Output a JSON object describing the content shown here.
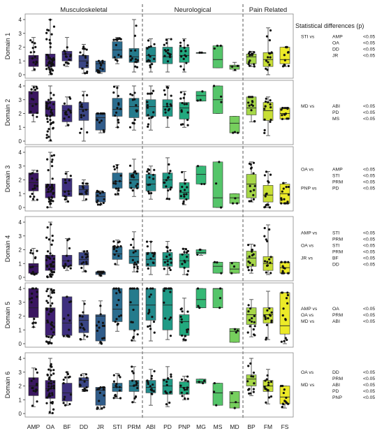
{
  "chart_data": {
    "type": "box",
    "groups": [
      {
        "label": "Musculoskeletal",
        "categories": [
          "AMP",
          "OA",
          "BF",
          "DD",
          "JR",
          "STI",
          "PRM"
        ]
      },
      {
        "label": "Neurological",
        "categories": [
          "ABI",
          "PD",
          "PNP",
          "MG",
          "MS",
          "MD"
        ]
      },
      {
        "label": "Pain Related",
        "categories": [
          "BP",
          "FM",
          "FS"
        ]
      }
    ],
    "categories": [
      "AMP",
      "OA",
      "BF",
      "DD",
      "JR",
      "STI",
      "PRM",
      "ABI",
      "PD",
      "PNP",
      "MG",
      "MS",
      "MD",
      "BP",
      "FM",
      "FS"
    ],
    "colors": [
      "#3a1660",
      "#3f1f72",
      "#3e2f7e",
      "#3a4584",
      "#305c8a",
      "#2a6c8e",
      "#257b8c",
      "#228a8b",
      "#209a85",
      "#22a97e",
      "#35b875",
      "#55c56a",
      "#76cf5d",
      "#a6d748",
      "#c8df35",
      "#ecea28"
    ],
    "y_range": [
      0,
      4
    ],
    "y_ticks": [
      "0",
      "1",
      "2",
      "3",
      "4"
    ],
    "panels": [
      {
        "ylabel": "Domain 1",
        "boxes": [
          {
            "min": 0.3,
            "q1": 0.6,
            "median": 1.2,
            "q3": 1.4,
            "max": 2.7
          },
          {
            "min": 0,
            "q1": 0.6,
            "median": 1.1,
            "q3": 1.5,
            "max": 4
          },
          {
            "min": 0.6,
            "q1": 1.0,
            "median": 1.5,
            "q3": 1.7,
            "max": 2.7
          },
          {
            "min": 0.1,
            "q1": 0.5,
            "median": 1.0,
            "q3": 1.4,
            "max": 2.2
          },
          {
            "min": 0.1,
            "q1": 0.2,
            "median": 0.8,
            "q3": 1.0,
            "max": 1.0
          },
          {
            "min": 0.8,
            "q1": 1.2,
            "median": 1.8,
            "q3": 2.4,
            "max": 2.7
          },
          {
            "min": 0.2,
            "q1": 0.9,
            "median": 1.3,
            "q3": 1.9,
            "max": 4
          },
          {
            "min": 0.2,
            "q1": 0.9,
            "median": 1.4,
            "q3": 2.0,
            "max": 2.6
          },
          {
            "min": 0.2,
            "q1": 0.8,
            "median": 1.3,
            "q3": 2.0,
            "max": 2.6
          },
          {
            "min": 0.2,
            "q1": 0.9,
            "median": 1.4,
            "q3": 2.0,
            "max": 2.6
          },
          {
            "min": 1.6,
            "q1": 1.6,
            "median": 1.6,
            "q3": 1.6,
            "max": 1.6
          },
          {
            "min": 0.5,
            "q1": 0.5,
            "median": 1.1,
            "q3": 2.1,
            "max": 2.1
          },
          {
            "min": 0.3,
            "q1": 0.4,
            "median": 0.6,
            "q3": 0.7,
            "max": 0.9
          },
          {
            "min": 0.6,
            "q1": 0.8,
            "median": 1.3,
            "q3": 1.5,
            "max": 1.7
          },
          {
            "min": 0,
            "q1": 0.6,
            "median": 1.1,
            "q3": 1.6,
            "max": 3.4
          },
          {
            "min": 0.6,
            "q1": 0.8,
            "median": 1.1,
            "q3": 2.0,
            "max": 2.0
          }
        ],
        "stats": [
          {
            "comparison": "STI vs",
            "against": "AMP",
            "p": "<0.05"
          },
          {
            "comparison": "",
            "against": "OA",
            "p": "<0.05"
          },
          {
            "comparison": "",
            "against": "DD",
            "p": "<0.05"
          },
          {
            "comparison": "",
            "against": "JR",
            "p": "<0.05"
          }
        ]
      },
      {
        "ylabel": "Domain 2",
        "boxes": [
          {
            "min": 1.4,
            "q1": 2.0,
            "median": 2.7,
            "q3": 3.6,
            "max": 4
          },
          {
            "min": 0,
            "q1": 1.8,
            "median": 2.3,
            "q3": 2.9,
            "max": 4
          },
          {
            "min": 1.1,
            "q1": 1.4,
            "median": 2.2,
            "q3": 2.6,
            "max": 3.2
          },
          {
            "min": 0,
            "q1": 1.5,
            "median": 2.3,
            "q3": 2.8,
            "max": 3.6
          },
          {
            "min": 0.6,
            "q1": 0.8,
            "median": 1.7,
            "q3": 2.0,
            "max": 2.0
          },
          {
            "min": 1.0,
            "q1": 1.8,
            "median": 2.3,
            "q3": 3.1,
            "max": 4
          },
          {
            "min": 0.8,
            "q1": 1.7,
            "median": 2.5,
            "q3": 3.1,
            "max": 4
          },
          {
            "min": 0.8,
            "q1": 1.8,
            "median": 2.5,
            "q3": 3.0,
            "max": 4
          },
          {
            "min": 1.0,
            "q1": 1.8,
            "median": 2.5,
            "q3": 3.0,
            "max": 4
          },
          {
            "min": 1.0,
            "q1": 1.6,
            "median": 2.4,
            "q3": 2.8,
            "max": 3.6
          },
          {
            "min": 2.9,
            "q1": 2.9,
            "median": 3.3,
            "q3": 3.6,
            "max": 3.6
          },
          {
            "min": 2.0,
            "q1": 2.0,
            "median": 3.0,
            "q3": 4.0,
            "max": 4.0
          },
          {
            "min": 0.6,
            "q1": 0.6,
            "median": 1.3,
            "q3": 1.8,
            "max": 1.8
          },
          {
            "min": 1.4,
            "q1": 1.9,
            "median": 2.4,
            "q3": 3.2,
            "max": 3.2
          },
          {
            "min": 0.4,
            "q1": 1.5,
            "median": 2.2,
            "q3": 2.8,
            "max": 3.2
          },
          {
            "min": 1.6,
            "q1": 1.6,
            "median": 2.0,
            "q3": 2.4,
            "max": 2.4
          }
        ],
        "stats": [
          {
            "comparison": "MD vs",
            "against": "ABI",
            "p": "<0.05"
          },
          {
            "comparison": "",
            "against": "PD",
            "p": "<0.05"
          },
          {
            "comparison": "",
            "against": "MS",
            "p": "<0.05"
          }
        ]
      },
      {
        "ylabel": "Domain 3",
        "boxes": [
          {
            "min": 0.5,
            "q1": 1.2,
            "median": 1.8,
            "q3": 2.5,
            "max": 2.7
          },
          {
            "min": 0,
            "q1": 0.7,
            "median": 1.1,
            "q3": 1.7,
            "max": 4
          },
          {
            "min": 0.4,
            "q1": 0.8,
            "median": 1.2,
            "q3": 2.1,
            "max": 2.6
          },
          {
            "min": 0.5,
            "q1": 0.9,
            "median": 1.3,
            "q3": 1.6,
            "max": 2.0
          },
          {
            "min": 0.2,
            "q1": 0.4,
            "median": 0.8,
            "q3": 1.1,
            "max": 1.2
          },
          {
            "min": 0.9,
            "q1": 1.4,
            "median": 1.9,
            "q3": 2.5,
            "max": 3.1
          },
          {
            "min": 0.8,
            "q1": 1.4,
            "median": 2.0,
            "q3": 2.5,
            "max": 3.5
          },
          {
            "min": 0.6,
            "q1": 1.2,
            "median": 1.7,
            "q3": 2.4,
            "max": 3.0
          },
          {
            "min": 0.6,
            "q1": 1.4,
            "median": 2.0,
            "q3": 2.5,
            "max": 3.6
          },
          {
            "min": 0.2,
            "q1": 0.6,
            "median": 1.1,
            "q3": 1.8,
            "max": 2.6
          },
          {
            "min": 1.7,
            "q1": 1.7,
            "median": 2.4,
            "q3": 3.0,
            "max": 3.0
          },
          {
            "min": 0,
            "q1": 0,
            "median": 0.7,
            "q3": 3.3,
            "max": 3.3
          },
          {
            "min": 0.3,
            "q1": 0.3,
            "median": 0.7,
            "q3": 1.0,
            "max": 1.0
          },
          {
            "min": 0.4,
            "q1": 0.7,
            "median": 1.7,
            "q3": 2.4,
            "max": 3.3
          },
          {
            "min": 0,
            "q1": 0.4,
            "median": 0.9,
            "q3": 1.6,
            "max": 2.6
          },
          {
            "min": 0.3,
            "q1": 0.3,
            "median": 1.0,
            "q3": 1.7,
            "max": 1.8
          }
        ],
        "stats": [
          {
            "comparison": "OA vs",
            "against": "AMP",
            "p": "<0.05"
          },
          {
            "comparison": "",
            "against": "STI",
            "p": "<0.05"
          },
          {
            "comparison": "",
            "against": "PRM",
            "p": "<0.05"
          },
          {
            "comparison": "PNP vs",
            "against": "PD",
            "p": "<0.05"
          }
        ]
      },
      {
        "ylabel": "Domain 4",
        "boxes": [
          {
            "min": 0.2,
            "q1": 0.3,
            "median": 0.8,
            "q3": 1.0,
            "max": 2.1
          },
          {
            "min": 0,
            "q1": 0.5,
            "median": 0.9,
            "q3": 1.6,
            "max": 4
          },
          {
            "min": 0.5,
            "q1": 0.8,
            "median": 1.2,
            "q3": 1.6,
            "max": 2.8
          },
          {
            "min": 0.4,
            "q1": 0.9,
            "median": 1.3,
            "q3": 1.8,
            "max": 1.9
          },
          {
            "min": 0.1,
            "q1": 0.2,
            "median": 0.3,
            "q3": 0.4,
            "max": 0.4
          },
          {
            "min": 0.9,
            "q1": 1.3,
            "median": 1.7,
            "q3": 2.2,
            "max": 2.7
          },
          {
            "min": 0.4,
            "q1": 1.0,
            "median": 1.5,
            "q3": 2.0,
            "max": 3.3
          },
          {
            "min": 0.2,
            "q1": 0.8,
            "median": 1.3,
            "q3": 1.8,
            "max": 2.6
          },
          {
            "min": 0.2,
            "q1": 0.8,
            "median": 1.3,
            "q3": 1.8,
            "max": 2.6
          },
          {
            "min": 0.2,
            "q1": 0.7,
            "median": 1.2,
            "q3": 1.7,
            "max": 2.1
          },
          {
            "min": 1.6,
            "q1": 1.7,
            "median": 1.8,
            "q3": 2.0,
            "max": 2.0
          },
          {
            "min": 0.3,
            "q1": 0.3,
            "median": 0.8,
            "q3": 1.1,
            "max": 1.1
          },
          {
            "min": 0.3,
            "q1": 0.3,
            "median": 0.6,
            "q3": 1.1,
            "max": 1.1
          },
          {
            "min": 0.3,
            "q1": 0.8,
            "median": 1.4,
            "q3": 1.9,
            "max": 2.4
          },
          {
            "min": 0.2,
            "q1": 0.5,
            "median": 1.0,
            "q3": 1.5,
            "max": 3.8
          },
          {
            "min": 0.3,
            "q1": 0.3,
            "median": 0.7,
            "q3": 1.1,
            "max": 1.1
          }
        ],
        "stats": [
          {
            "comparison": "AMP vs",
            "against": "STI",
            "p": "<0.05"
          },
          {
            "comparison": "",
            "against": "PRM",
            "p": "<0.05"
          },
          {
            "comparison": "OA vs",
            "against": "STI",
            "p": "<0.05"
          },
          {
            "comparison": "",
            "against": "PRM",
            "p": "<0.05"
          },
          {
            "comparison": "JR vs",
            "against": "BF",
            "p": "<0.05"
          },
          {
            "comparison": "",
            "against": "DD",
            "p": "<0.05"
          }
        ]
      },
      {
        "ylabel": "Domain 5",
        "boxes": [
          {
            "min": 1.2,
            "q1": 1.9,
            "median": 2.6,
            "q3": 4.0,
            "max": 4
          },
          {
            "min": 0,
            "q1": 0.6,
            "median": 1.5,
            "q3": 2.6,
            "max": 4
          },
          {
            "min": 0.5,
            "q1": 0.6,
            "median": 1.5,
            "q3": 3.4,
            "max": 3.4
          },
          {
            "min": 0.3,
            "q1": 0.8,
            "median": 1.7,
            "q3": 2.1,
            "max": 3.1
          },
          {
            "min": 0,
            "q1": 0.2,
            "median": 2.0,
            "q3": 2.1,
            "max": 3.1
          },
          {
            "min": 0.9,
            "q1": 1.6,
            "median": 2.5,
            "q3": 4.0,
            "max": 4
          },
          {
            "min": 0.2,
            "q1": 1.0,
            "median": 2.8,
            "q3": 4.0,
            "max": 4
          },
          {
            "min": 0.2,
            "q1": 1.7,
            "median": 2.8,
            "q3": 4.0,
            "max": 4
          },
          {
            "min": 0.3,
            "q1": 1.0,
            "median": 2.8,
            "q3": 4.0,
            "max": 4
          },
          {
            "min": 0.2,
            "q1": 0.6,
            "median": 1.6,
            "q3": 2.1,
            "max": 3.3
          },
          {
            "min": 2.6,
            "q1": 2.6,
            "median": 3.2,
            "q3": 4.0,
            "max": 4
          },
          {
            "min": 2.6,
            "q1": 2.6,
            "median": 4.0,
            "q3": 4.0,
            "max": 4
          },
          {
            "min": 0.1,
            "q1": 0.1,
            "median": 0.9,
            "q3": 1.1,
            "max": 1.1
          },
          {
            "min": 0.5,
            "q1": 1.4,
            "median": 2.1,
            "q3": 2.6,
            "max": 3.2
          },
          {
            "min": 0.3,
            "q1": 1.5,
            "median": 2.1,
            "q3": 2.6,
            "max": 3.8
          },
          {
            "min": 0,
            "q1": 0.7,
            "median": 1.3,
            "q3": 3.7,
            "max": 3.7
          }
        ],
        "stats": [
          {
            "comparison": "AMP vs",
            "against": "OA",
            "p": "<0.05"
          },
          {
            "comparison": "OA vs",
            "against": "PRM",
            "p": "<0.05"
          },
          {
            "comparison": "MD vs",
            "against": "ABI",
            "p": "<0.05"
          }
        ]
      },
      {
        "ylabel": "Domain 6",
        "boxes": [
          {
            "min": 0.5,
            "q1": 1.3,
            "median": 2.0,
            "q3": 2.6,
            "max": 3.3
          },
          {
            "min": 0,
            "q1": 1.1,
            "median": 1.8,
            "q3": 2.4,
            "max": 4
          },
          {
            "min": 0.6,
            "q1": 0.9,
            "median": 1.5,
            "q3": 2.2,
            "max": 3.0
          },
          {
            "min": 1.6,
            "q1": 1.9,
            "median": 2.4,
            "q3": 2.6,
            "max": 2.9
          },
          {
            "min": 0.3,
            "q1": 0.6,
            "median": 1.7,
            "q3": 1.9,
            "max": 1.9
          },
          {
            "min": 1.1,
            "q1": 1.6,
            "median": 1.9,
            "q3": 2.2,
            "max": 2.9
          },
          {
            "min": 0.8,
            "q1": 1.6,
            "median": 2.0,
            "q3": 2.4,
            "max": 3.4
          },
          {
            "min": 0.6,
            "q1": 1.5,
            "median": 1.9,
            "q3": 2.4,
            "max": 3.2
          },
          {
            "min": 0.5,
            "q1": 1.4,
            "median": 2.0,
            "q3": 2.5,
            "max": 3.4
          },
          {
            "min": 1.0,
            "q1": 1.4,
            "median": 1.9,
            "q3": 2.3,
            "max": 2.7
          },
          {
            "min": 2.2,
            "q1": 2.2,
            "median": 2.3,
            "q3": 2.5,
            "max": 2.5
          },
          {
            "min": 0.6,
            "q1": 0.6,
            "median": 1.5,
            "q3": 2.2,
            "max": 2.2
          },
          {
            "min": 0.4,
            "q1": 0.4,
            "median": 0.8,
            "q3": 1.6,
            "max": 1.6
          },
          {
            "min": 1.3,
            "q1": 2.0,
            "median": 2.5,
            "q3": 2.8,
            "max": 4
          },
          {
            "min": 0.7,
            "q1": 1.6,
            "median": 2.0,
            "q3": 2.4,
            "max": 3.2
          },
          {
            "min": 0.4,
            "q1": 0.7,
            "median": 1.2,
            "q3": 2.0,
            "max": 2.0
          }
        ],
        "stats": [
          {
            "comparison": "OA vs",
            "against": "DD",
            "p": "<0.05"
          },
          {
            "comparison": "",
            "against": "PRM",
            "p": "<0.05"
          },
          {
            "comparison": "MD vs",
            "against": "ABI",
            "p": "<0.05"
          },
          {
            "comparison": "",
            "against": "PD",
            "p": "<0.05"
          },
          {
            "comparison": "",
            "against": "PNP",
            "p": "<0.05"
          }
        ]
      }
    ],
    "stats_title": "Statistical differences (p)"
  }
}
